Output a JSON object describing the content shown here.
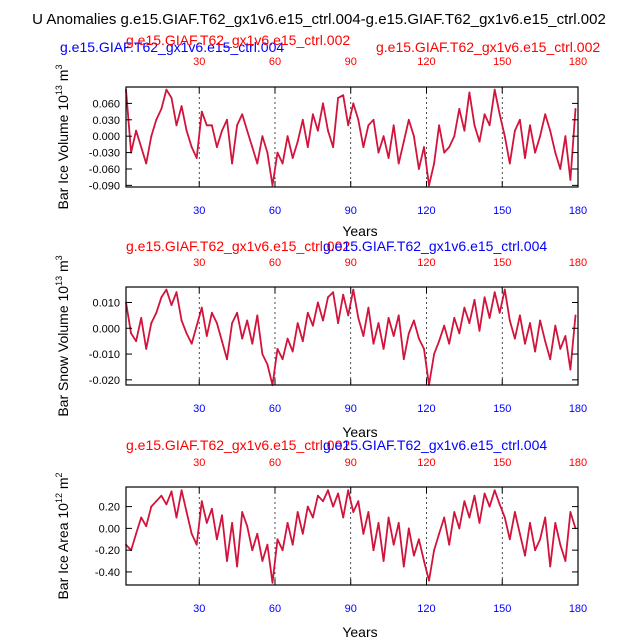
{
  "figure": {
    "title": "U Anomalies g.e15.GIAF.T62_gx1v6.e15_ctrl.004-g.e15.GIAF.T62_gx1v6.e15_ctrl.002"
  },
  "colors": {
    "series": "#d2143c",
    "red_label": "#ff0000",
    "blue_label": "#0000ff",
    "axis": "#000000",
    "grid": "#000000"
  },
  "chart_data": [
    {
      "type": "line",
      "name": "bar-ice-volume",
      "ylabel": "Bar Ice Volume 10",
      "ylabel_exp": "13",
      "ylabel_unit": "m",
      "ylabel_unit_exp": "3",
      "xlabel": "Years",
      "case_blue": "g.e15.GIAF.T62_gx1v6.e15_ctrl.004",
      "case_red_top": "g.e15.GIAF.T62_gx1v6.e15_ctrl.002",
      "case_red_right": "g.e15.GIAF.T62_gx1v6.e15_ctrl.002",
      "xlim": [
        1,
        180
      ],
      "ylim": [
        -0.093,
        0.09
      ],
      "xticks": [
        "30",
        "60",
        "90",
        "120",
        "150",
        "180"
      ],
      "xtick_values": [
        30,
        60,
        90,
        120,
        150,
        180
      ],
      "yticks": [
        "0.060",
        "0.030",
        "0.000",
        "-0.030",
        "-0.060",
        "-0.090"
      ],
      "ytick_values": [
        0.06,
        0.03,
        0.0,
        -0.03,
        -0.06,
        -0.09
      ],
      "grid_x": [
        30,
        60,
        90,
        120,
        150
      ],
      "x": [
        1,
        3,
        5,
        7,
        9,
        11,
        13,
        15,
        17,
        19,
        21,
        23,
        25,
        27,
        29,
        31,
        33,
        35,
        37,
        39,
        41,
        43,
        45,
        47,
        49,
        51,
        53,
        55,
        57,
        59,
        61,
        63,
        65,
        67,
        69,
        71,
        73,
        75,
        77,
        79,
        81,
        83,
        85,
        87,
        89,
        91,
        93,
        95,
        97,
        99,
        101,
        103,
        105,
        107,
        109,
        111,
        113,
        115,
        117,
        119,
        121,
        123,
        125,
        127,
        129,
        131,
        133,
        135,
        137,
        139,
        141,
        143,
        145,
        147,
        149,
        151,
        153,
        155,
        157,
        159,
        161,
        163,
        165,
        167,
        169,
        171,
        173,
        175,
        177,
        179
      ],
      "values": [
        0.085,
        -0.03,
        0.01,
        -0.02,
        -0.05,
        0.0,
        0.03,
        0.05,
        0.085,
        0.07,
        0.02,
        0.055,
        0.01,
        -0.02,
        -0.04,
        0.045,
        0.02,
        0.02,
        -0.02,
        0.01,
        0.03,
        -0.05,
        0.02,
        0.04,
        0.01,
        -0.02,
        -0.05,
        0.0,
        -0.03,
        -0.09,
        -0.03,
        -0.05,
        0.0,
        -0.04,
        -0.01,
        0.03,
        -0.02,
        0.04,
        0.01,
        0.06,
        0.01,
        -0.02,
        0.07,
        0.075,
        0.02,
        0.06,
        0.03,
        -0.02,
        0.02,
        0.03,
        -0.03,
        0.0,
        -0.04,
        0.02,
        -0.05,
        -0.01,
        0.03,
        0.0,
        -0.06,
        -0.02,
        -0.09,
        -0.05,
        0.02,
        -0.03,
        -0.02,
        0.0,
        0.05,
        0.01,
        0.08,
        0.02,
        -0.01,
        0.04,
        0.02,
        0.085,
        0.04,
        0.0,
        -0.05,
        0.01,
        0.03,
        -0.04,
        0.02,
        -0.03,
        0.0,
        0.04,
        0.01,
        -0.03,
        -0.06,
        0.0,
        -0.08,
        0.05
      ]
    },
    {
      "type": "line",
      "name": "bar-snow-volume",
      "ylabel": "Bar Snow Volume 10",
      "ylabel_exp": "13",
      "ylabel_unit": "m",
      "ylabel_unit_exp": "3",
      "xlabel": "Years",
      "case_red_top": "g.e15.GIAF.T62_gx1v6.e15_ctrl.002",
      "case_blue": "g.e15.GIAF.T62_gx1v6.e15_ctrl.004",
      "xlim": [
        1,
        180
      ],
      "ylim": [
        -0.022,
        0.016
      ],
      "xticks": [
        "30",
        "60",
        "90",
        "120",
        "150",
        "180"
      ],
      "xtick_values": [
        30,
        60,
        90,
        120,
        150,
        180
      ],
      "yticks": [
        "0.010",
        "0.000",
        "-0.010",
        "-0.020"
      ],
      "ytick_values": [
        0.01,
        0.0,
        -0.01,
        -0.02
      ],
      "grid_x": [
        30,
        60,
        90,
        120,
        150
      ],
      "x": [
        1,
        3,
        5,
        7,
        9,
        11,
        13,
        15,
        17,
        19,
        21,
        23,
        25,
        27,
        29,
        31,
        33,
        35,
        37,
        39,
        41,
        43,
        45,
        47,
        49,
        51,
        53,
        55,
        57,
        59,
        61,
        63,
        65,
        67,
        69,
        71,
        73,
        75,
        77,
        79,
        81,
        83,
        85,
        87,
        89,
        91,
        93,
        95,
        97,
        99,
        101,
        103,
        105,
        107,
        109,
        111,
        113,
        115,
        117,
        119,
        121,
        123,
        125,
        127,
        129,
        131,
        133,
        135,
        137,
        139,
        141,
        143,
        145,
        147,
        149,
        151,
        153,
        155,
        157,
        159,
        161,
        163,
        165,
        167,
        169,
        171,
        173,
        175,
        177,
        179
      ],
      "values": [
        0.01,
        -0.002,
        -0.005,
        0.004,
        -0.008,
        0.002,
        0.006,
        0.012,
        0.015,
        0.009,
        0.014,
        0.003,
        -0.002,
        -0.006,
        0.001,
        0.008,
        -0.003,
        0.006,
        0.002,
        -0.005,
        -0.012,
        0.002,
        0.006,
        -0.004,
        0.003,
        -0.006,
        0.005,
        -0.01,
        -0.014,
        -0.022,
        -0.008,
        -0.012,
        -0.004,
        -0.009,
        0.002,
        -0.005,
        0.006,
        0.001,
        0.01,
        0.003,
        0.012,
        0.014,
        0.002,
        0.013,
        0.005,
        0.015,
        0.004,
        -0.003,
        0.008,
        -0.006,
        0.002,
        -0.008,
        0.004,
        -0.003,
        0.005,
        -0.012,
        -0.002,
        0.003,
        -0.004,
        -0.008,
        -0.022,
        -0.01,
        -0.005,
        0.001,
        -0.006,
        0.004,
        -0.002,
        0.008,
        0.002,
        0.011,
        -0.001,
        0.012,
        0.004,
        0.014,
        0.006,
        0.015,
        0.003,
        -0.004,
        0.005,
        -0.006,
        0.002,
        -0.009,
        0.003,
        -0.005,
        -0.012,
        0.001,
        -0.008,
        -0.003,
        -0.016,
        0.005
      ]
    },
    {
      "type": "line",
      "name": "bar-ice-area",
      "ylabel": "Bar Ice Area 10",
      "ylabel_exp": "12",
      "ylabel_unit": "m",
      "ylabel_unit_exp": "2",
      "xlabel": "Years",
      "case_red_top": "g.e15.GIAF.T62_gx1v6.e15_ctrl.002",
      "case_blue": "g.e15.GIAF.T62_gx1v6.e15_ctrl.004",
      "xlim": [
        1,
        180
      ],
      "ylim": [
        -0.52,
        0.38
      ],
      "xticks": [
        "30",
        "60",
        "90",
        "120",
        "150",
        "180"
      ],
      "xtick_values": [
        30,
        60,
        90,
        120,
        150,
        180
      ],
      "yticks": [
        "0.20",
        "0.00",
        "-0.20",
        "-0.40"
      ],
      "ytick_values": [
        0.2,
        0.0,
        -0.2,
        -0.4
      ],
      "grid_x": [
        30,
        60,
        90,
        120,
        150
      ],
      "x": [
        1,
        3,
        5,
        7,
        9,
        11,
        13,
        15,
        17,
        19,
        21,
        23,
        25,
        27,
        29,
        31,
        33,
        35,
        37,
        39,
        41,
        43,
        45,
        47,
        49,
        51,
        53,
        55,
        57,
        59,
        61,
        63,
        65,
        67,
        69,
        71,
        73,
        75,
        77,
        79,
        81,
        83,
        85,
        87,
        89,
        91,
        93,
        95,
        97,
        99,
        101,
        103,
        105,
        107,
        109,
        111,
        113,
        115,
        117,
        119,
        121,
        123,
        125,
        127,
        129,
        131,
        133,
        135,
        137,
        139,
        141,
        143,
        145,
        147,
        149,
        151,
        153,
        155,
        157,
        159,
        161,
        163,
        165,
        167,
        169,
        171,
        173,
        175,
        177,
        179
      ],
      "values": [
        -0.15,
        -0.2,
        -0.05,
        0.1,
        0.02,
        0.2,
        0.25,
        0.3,
        0.22,
        0.34,
        0.1,
        0.35,
        0.15,
        -0.05,
        -0.15,
        0.25,
        0.05,
        0.18,
        -0.1,
        0.12,
        -0.3,
        0.05,
        -0.35,
        0.15,
        0.02,
        -0.2,
        -0.05,
        -0.3,
        -0.15,
        -0.5,
        -0.1,
        -0.2,
        0.05,
        -0.15,
        0.15,
        -0.05,
        0.2,
        0.1,
        0.3,
        0.25,
        0.35,
        0.2,
        0.32,
        0.1,
        0.35,
        0.15,
        0.25,
        -0.05,
        0.15,
        -0.2,
        0.05,
        -0.3,
        0.1,
        -0.15,
        0.05,
        -0.35,
        0.0,
        -0.25,
        -0.1,
        -0.3,
        -0.48,
        -0.2,
        -0.05,
        0.1,
        -0.15,
        0.15,
        0.0,
        0.25,
        0.1,
        0.3,
        0.05,
        0.32,
        0.2,
        0.35,
        0.22,
        0.1,
        -0.1,
        0.15,
        -0.05,
        -0.25,
        0.05,
        -0.2,
        -0.1,
        0.1,
        -0.35,
        0.05,
        -0.15,
        -0.3,
        0.15,
        0.0
      ]
    }
  ]
}
